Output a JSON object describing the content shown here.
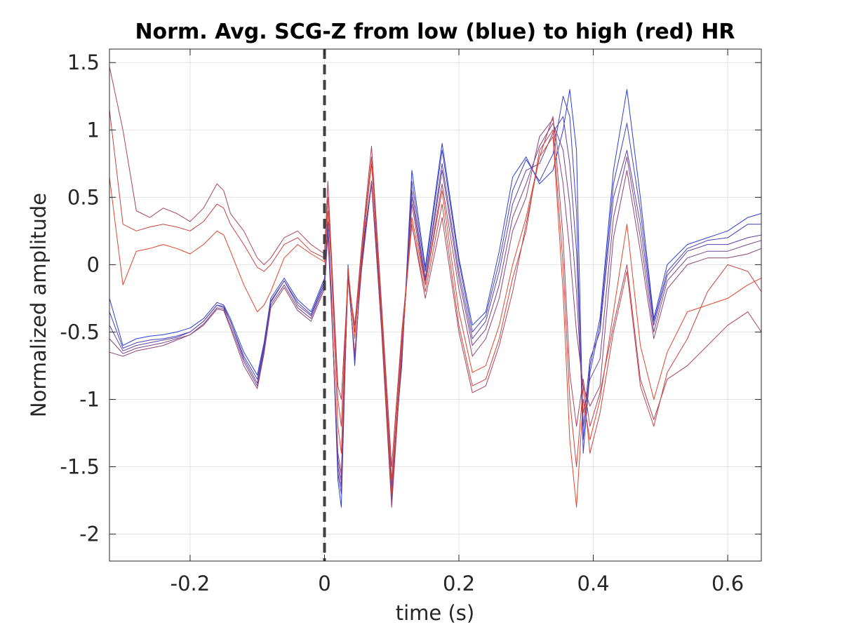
{
  "chart_data": {
    "type": "line",
    "title": "Norm. Avg. SCG-Z from low (blue) to high (red) HR",
    "xlabel": "time (s)",
    "ylabel": "Normalized amplitude",
    "xlim": [
      -0.32,
      0.65
    ],
    "ylim": [
      -2.2,
      1.6
    ],
    "xticks": [
      -0.2,
      0,
      0.2,
      0.4,
      0.6
    ],
    "xtick_labels": [
      "-0.2",
      "0",
      "0.2",
      "0.4",
      "0.6"
    ],
    "yticks": [
      1.5,
      1,
      0.5,
      0,
      -0.5,
      -1,
      -1.5,
      -2
    ],
    "ytick_labels": [
      "1.5",
      "1",
      "0.5",
      "0",
      "-0.5",
      "-1",
      "-1.5",
      "-2"
    ],
    "grid": true,
    "vertical_marker": {
      "x": 0,
      "style": "dashed",
      "color": "#404040"
    },
    "color_low": "#2a3fd4",
    "color_high": "#e0452b",
    "x": [
      -0.32,
      -0.3,
      -0.28,
      -0.26,
      -0.24,
      -0.22,
      -0.2,
      -0.18,
      -0.16,
      -0.15,
      -0.14,
      -0.12,
      -0.1,
      -0.09,
      -0.08,
      -0.06,
      -0.04,
      -0.02,
      0.0,
      0.005,
      0.01,
      0.02,
      0.025,
      0.035,
      0.045,
      0.055,
      0.07,
      0.085,
      0.1,
      0.115,
      0.13,
      0.15,
      0.175,
      0.2,
      0.22,
      0.24,
      0.26,
      0.28,
      0.3,
      0.32,
      0.34,
      0.355,
      0.365,
      0.375,
      0.385,
      0.395,
      0.41,
      0.43,
      0.45,
      0.47,
      0.49,
      0.51,
      0.54,
      0.57,
      0.6,
      0.63,
      0.65
    ],
    "series": [
      {
        "values": [
          -0.25,
          -0.6,
          -0.55,
          -0.53,
          -0.52,
          -0.5,
          -0.47,
          -0.4,
          -0.28,
          -0.3,
          -0.4,
          -0.65,
          -0.82,
          -0.58,
          -0.25,
          -0.1,
          -0.26,
          -0.35,
          -0.1,
          0.32,
          -0.2,
          -1.6,
          -1.8,
          0.0,
          -0.75,
          0.05,
          0.62,
          -0.4,
          -1.6,
          -0.75,
          0.7,
          -0.02,
          0.9,
          0.05,
          -0.45,
          -0.35,
          0.1,
          0.65,
          0.8,
          0.6,
          0.7,
          1.0,
          1.3,
          0.85,
          -1.3,
          -0.75,
          -0.4,
          0.7,
          1.3,
          0.5,
          -0.4,
          0.0,
          0.15,
          0.2,
          0.25,
          0.35,
          0.38
        ]
      },
      {
        "values": [
          -0.35,
          -0.62,
          -0.58,
          -0.56,
          -0.55,
          -0.53,
          -0.5,
          -0.42,
          -0.3,
          -0.32,
          -0.42,
          -0.68,
          -0.85,
          -0.6,
          -0.27,
          -0.12,
          -0.28,
          -0.37,
          -0.12,
          0.3,
          -0.22,
          -1.55,
          -1.7,
          -0.02,
          -0.72,
          0.03,
          0.6,
          -0.42,
          -1.65,
          -0.72,
          0.62,
          -0.05,
          0.85,
          0.02,
          -0.5,
          -0.38,
          0.02,
          0.55,
          0.78,
          0.62,
          0.82,
          1.25,
          1.1,
          0.4,
          -1.4,
          -0.8,
          -0.45,
          0.6,
          1.05,
          0.4,
          -0.42,
          -0.05,
          0.12,
          0.18,
          0.2,
          0.3,
          0.3
        ]
      },
      {
        "values": [
          -0.45,
          -0.64,
          -0.6,
          -0.58,
          -0.56,
          -0.54,
          -0.5,
          -0.42,
          -0.3,
          -0.31,
          -0.42,
          -0.7,
          -0.88,
          -0.62,
          -0.28,
          -0.12,
          -0.3,
          -0.38,
          -0.14,
          0.28,
          -0.25,
          -1.5,
          -1.65,
          -0.05,
          -0.7,
          0.0,
          0.6,
          -0.45,
          -1.7,
          -0.7,
          0.55,
          -0.1,
          0.75,
          -0.05,
          -0.55,
          -0.42,
          -0.05,
          0.45,
          0.7,
          0.75,
          0.98,
          1.1,
          0.75,
          0.1,
          -1.2,
          -0.7,
          -0.5,
          0.5,
          0.85,
          0.3,
          -0.45,
          -0.08,
          0.1,
          0.15,
          0.15,
          0.2,
          0.22
        ]
      },
      {
        "values": [
          -0.55,
          -0.66,
          -0.62,
          -0.6,
          -0.58,
          -0.55,
          -0.52,
          -0.44,
          -0.32,
          -0.33,
          -0.45,
          -0.72,
          -0.9,
          -0.64,
          -0.3,
          -0.15,
          -0.32,
          -0.4,
          -0.16,
          0.25,
          -0.28,
          -1.45,
          -1.6,
          -0.08,
          -0.68,
          -0.02,
          0.6,
          -0.48,
          -1.75,
          -0.68,
          0.5,
          -0.12,
          0.7,
          -0.1,
          -0.6,
          -0.48,
          -0.15,
          0.35,
          0.6,
          0.88,
          1.05,
          0.85,
          0.45,
          -0.2,
          -1.1,
          -0.85,
          -0.7,
          0.35,
          0.8,
          0.2,
          -0.5,
          -0.12,
          0.05,
          0.1,
          0.1,
          0.15,
          0.18
        ]
      },
      {
        "values": [
          -0.65,
          -0.68,
          -0.64,
          -0.62,
          -0.6,
          -0.56,
          -0.52,
          -0.45,
          -0.33,
          -0.34,
          -0.47,
          -0.75,
          -0.92,
          -0.66,
          -0.32,
          -0.17,
          -0.34,
          -0.42,
          -0.18,
          0.22,
          -0.3,
          -1.4,
          -1.55,
          -0.1,
          -0.66,
          -0.05,
          0.62,
          -0.5,
          -1.8,
          -0.66,
          0.45,
          -0.15,
          0.6,
          -0.18,
          -0.68,
          -0.55,
          -0.25,
          0.25,
          0.5,
          0.95,
          1.08,
          0.6,
          0.1,
          -0.5,
          -0.9,
          -1.05,
          -0.9,
          0.2,
          0.7,
          0.1,
          -0.55,
          -0.18,
          0.0,
          0.05,
          0.05,
          0.08,
          0.12
        ]
      },
      {
        "values": [
          1.47,
          1.0,
          0.4,
          0.35,
          0.42,
          0.38,
          0.32,
          0.42,
          0.6,
          0.55,
          0.38,
          0.25,
          0.05,
          0.0,
          0.05,
          0.2,
          0.25,
          0.15,
          0.08,
          0.62,
          0.1,
          -0.9,
          -1.0,
          -0.1,
          -0.45,
          0.12,
          0.88,
          -0.3,
          -1.5,
          -0.5,
          0.3,
          -0.25,
          0.35,
          -0.5,
          -0.95,
          -0.9,
          -0.6,
          -0.2,
          0.3,
          0.8,
          1.1,
          0.2,
          -0.8,
          -1.2,
          -0.85,
          -1.2,
          -0.95,
          -0.45,
          0.0,
          -0.85,
          -1.15,
          -0.85,
          -0.75,
          -0.6,
          -0.45,
          -0.35,
          -0.5
        ]
      },
      {
        "values": [
          1.15,
          0.3,
          0.25,
          0.28,
          0.3,
          0.28,
          0.25,
          0.32,
          0.45,
          0.42,
          0.3,
          0.15,
          -0.02,
          -0.05,
          0.0,
          0.15,
          0.2,
          0.1,
          0.05,
          0.5,
          0.05,
          -1.0,
          -1.2,
          -0.05,
          -0.5,
          0.1,
          0.8,
          -0.35,
          -1.6,
          -0.55,
          0.3,
          -0.2,
          0.45,
          -0.45,
          -0.9,
          -0.85,
          -0.55,
          -0.1,
          0.25,
          0.85,
          1.0,
          0.0,
          -1.0,
          -1.5,
          -0.9,
          -1.4,
          -1.1,
          -0.5,
          -0.05,
          -0.9,
          -1.2,
          -0.8,
          -0.55,
          -0.2,
          0.0,
          -0.05,
          -0.2
        ]
      },
      {
        "values": [
          0.65,
          -0.15,
          0.1,
          0.12,
          0.15,
          0.12,
          0.08,
          0.15,
          0.25,
          0.22,
          0.1,
          -0.15,
          -0.35,
          -0.3,
          -0.2,
          0.05,
          0.15,
          0.08,
          0.02,
          0.4,
          0.0,
          -1.2,
          -1.4,
          -0.02,
          -0.55,
          0.05,
          0.75,
          -0.4,
          -1.7,
          -0.6,
          0.35,
          -0.15,
          0.55,
          -0.35,
          -0.8,
          -0.75,
          -0.45,
          0.0,
          0.35,
          0.8,
          0.95,
          -0.2,
          -1.3,
          -1.8,
          -1.0,
          -1.3,
          -1.0,
          -0.35,
          0.3,
          -0.6,
          -1.0,
          -0.65,
          -0.35,
          -0.3,
          -0.25,
          -0.15,
          -0.1
        ]
      }
    ]
  }
}
